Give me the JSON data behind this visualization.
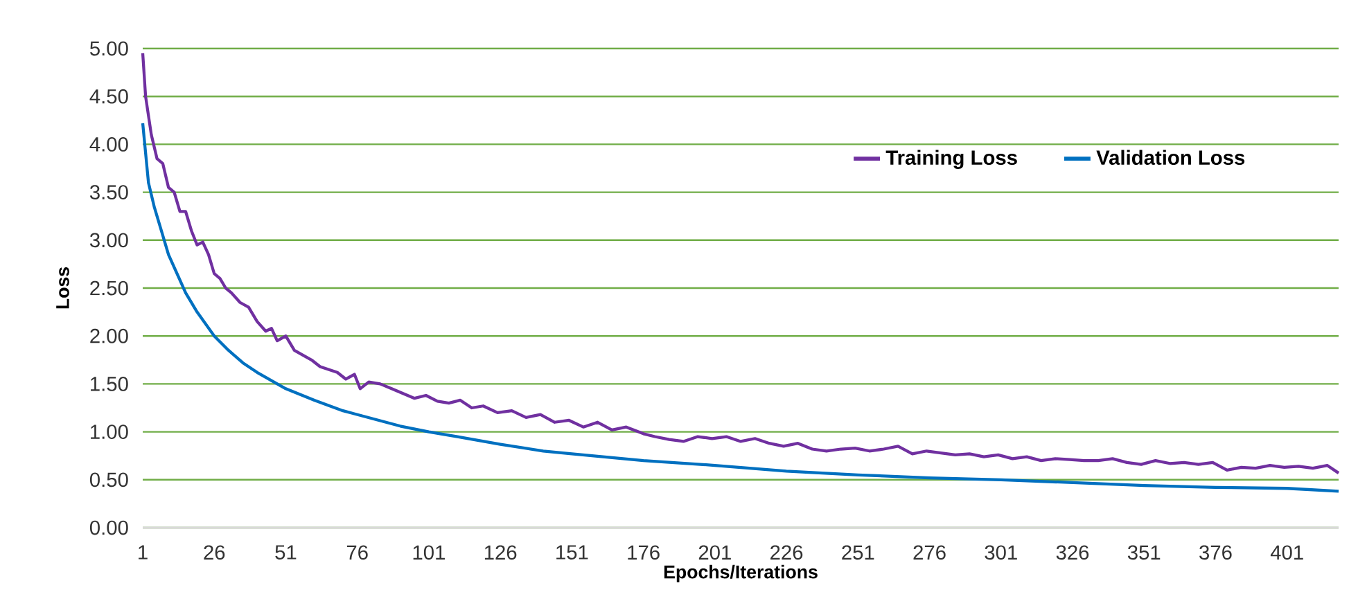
{
  "chart_data": {
    "type": "line",
    "xlabel": "Epochs/Iterations",
    "ylabel": "Loss",
    "xlim": [
      1,
      419
    ],
    "xticks": [
      1,
      26,
      51,
      76,
      101,
      126,
      151,
      176,
      201,
      226,
      251,
      276,
      301,
      326,
      351,
      376,
      401
    ],
    "ylim": [
      0,
      5
    ],
    "yticks": [
      {
        "value": 0,
        "label": "0.00"
      },
      {
        "value": 0.5,
        "label": "0.50"
      },
      {
        "value": 1,
        "label": "1.00"
      },
      {
        "value": 1.5,
        "label": "1.50"
      },
      {
        "value": 2,
        "label": "2.00"
      },
      {
        "value": 2.5,
        "label": "2.50"
      },
      {
        "value": 3,
        "label": "3.00"
      },
      {
        "value": 3.5,
        "label": "3.50"
      },
      {
        "value": 4,
        "label": "4.00"
      },
      {
        "value": 4.5,
        "label": "4.50"
      },
      {
        "value": 5,
        "label": "5.00"
      }
    ],
    "grid": "y",
    "legend": "top right",
    "marker": "none",
    "line_style": "solid",
    "series": [
      {
        "name": "Training Loss",
        "color": "#7030a0",
        "x": [
          1,
          2,
          4,
          6,
          8,
          10,
          12,
          14,
          16,
          18,
          20,
          22,
          24,
          26,
          28,
          30,
          32,
          35,
          38,
          41,
          44,
          46,
          48,
          51,
          54,
          57,
          60,
          63,
          66,
          69,
          72,
          75,
          77,
          80,
          84,
          88,
          92,
          96,
          100,
          104,
          108,
          112,
          116,
          120,
          125,
          130,
          135,
          140,
          145,
          150,
          155,
          160,
          165,
          170,
          176,
          180,
          185,
          190,
          195,
          200,
          205,
          210,
          215,
          220,
          225,
          230,
          235,
          240,
          245,
          250,
          255,
          260,
          265,
          270,
          275,
          280,
          285,
          290,
          295,
          300,
          305,
          310,
          315,
          320,
          325,
          330,
          335,
          340,
          345,
          350,
          355,
          360,
          365,
          370,
          375,
          380,
          385,
          390,
          395,
          400,
          405,
          410,
          415,
          419
        ],
        "values": [
          4.95,
          4.5,
          4.1,
          3.85,
          3.8,
          3.55,
          3.5,
          3.3,
          3.3,
          3.1,
          2.95,
          2.98,
          2.85,
          2.65,
          2.6,
          2.5,
          2.45,
          2.35,
          2.3,
          2.15,
          2.05,
          2.08,
          1.95,
          2.0,
          1.85,
          1.8,
          1.75,
          1.68,
          1.65,
          1.62,
          1.55,
          1.6,
          1.45,
          1.52,
          1.5,
          1.45,
          1.4,
          1.35,
          1.38,
          1.32,
          1.3,
          1.33,
          1.25,
          1.27,
          1.2,
          1.22,
          1.15,
          1.18,
          1.1,
          1.12,
          1.05,
          1.1,
          1.02,
          1.05,
          0.98,
          0.95,
          0.92,
          0.9,
          0.95,
          0.93,
          0.95,
          0.9,
          0.93,
          0.88,
          0.85,
          0.88,
          0.82,
          0.8,
          0.82,
          0.83,
          0.8,
          0.82,
          0.85,
          0.77,
          0.8,
          0.78,
          0.76,
          0.77,
          0.74,
          0.76,
          0.72,
          0.74,
          0.7,
          0.72,
          0.71,
          0.7,
          0.7,
          0.72,
          0.68,
          0.66,
          0.7,
          0.67,
          0.68,
          0.66,
          0.68,
          0.6,
          0.63,
          0.62,
          0.65,
          0.63,
          0.64,
          0.62,
          0.65,
          0.57
        ]
      },
      {
        "name": "Validation Loss",
        "color": "#0070c0",
        "x": [
          1,
          3,
          5,
          8,
          10,
          13,
          16,
          20,
          26,
          31,
          36,
          41,
          51,
          61,
          71,
          81,
          91,
          101,
          111,
          126,
          141,
          151,
          176,
          201,
          226,
          251,
          276,
          301,
          326,
          351,
          376,
          401,
          419
        ],
        "values": [
          4.22,
          3.6,
          3.35,
          3.05,
          2.85,
          2.65,
          2.45,
          2.25,
          2.0,
          1.85,
          1.72,
          1.62,
          1.45,
          1.33,
          1.22,
          1.14,
          1.06,
          1.0,
          0.95,
          0.87,
          0.8,
          0.77,
          0.7,
          0.65,
          0.59,
          0.55,
          0.52,
          0.5,
          0.47,
          0.44,
          0.42,
          0.41,
          0.38
        ]
      }
    ]
  }
}
